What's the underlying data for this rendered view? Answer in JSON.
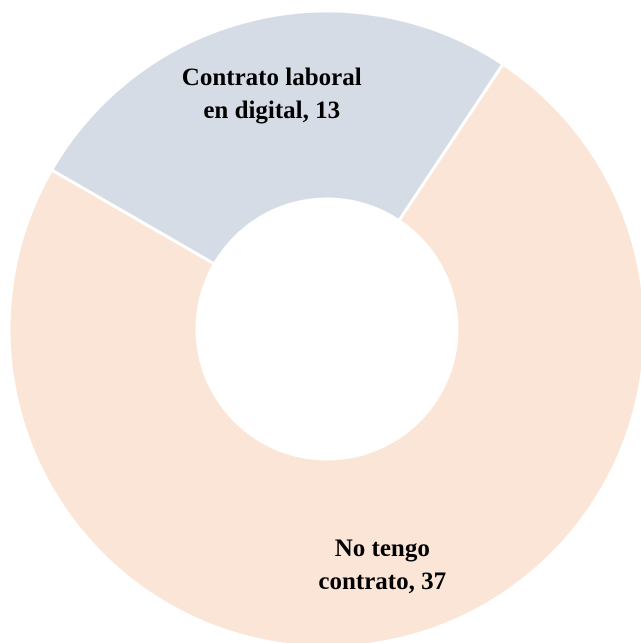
{
  "chart_data": {
    "type": "pie",
    "donut": true,
    "title": "",
    "start_angle_deg": -60,
    "slices": [
      {
        "category": "Contrato laboral en digital",
        "value": 13,
        "color": "#D6DCE5",
        "label_lines": [
          "Contrato laboral",
          "en digital, 13"
        ]
      },
      {
        "category": "No tengo contrato",
        "value": 37,
        "color": "#FBE5D6",
        "label_lines": [
          "No tengo",
          "contrato, 37"
        ]
      }
    ],
    "legend": "none"
  }
}
